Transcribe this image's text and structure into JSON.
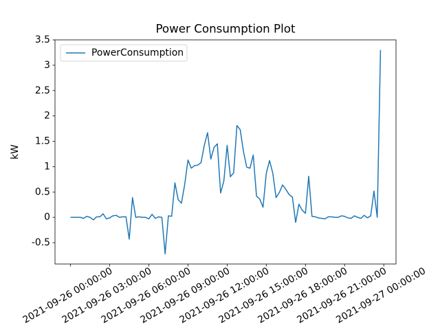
{
  "chart_data": {
    "type": "line",
    "title": "Power Consumption Plot",
    "y_label": "kW",
    "x": [
      "2021-09-26 00:00:00",
      "2021-09-26 00:15:00",
      "2021-09-26 00:30:00",
      "2021-09-26 00:45:00",
      "2021-09-26 01:00:00",
      "2021-09-26 01:15:00",
      "2021-09-26 01:30:00",
      "2021-09-26 01:45:00",
      "2021-09-26 02:00:00",
      "2021-09-26 02:15:00",
      "2021-09-26 02:30:00",
      "2021-09-26 02:45:00",
      "2021-09-26 03:00:00",
      "2021-09-26 03:15:00",
      "2021-09-26 03:30:00",
      "2021-09-26 03:45:00",
      "2021-09-26 04:00:00",
      "2021-09-26 04:15:00",
      "2021-09-26 04:30:00",
      "2021-09-26 04:45:00",
      "2021-09-26 05:00:00",
      "2021-09-26 05:15:00",
      "2021-09-26 05:30:00",
      "2021-09-26 05:45:00",
      "2021-09-26 06:00:00",
      "2021-09-26 06:15:00",
      "2021-09-26 06:30:00",
      "2021-09-26 06:45:00",
      "2021-09-26 07:00:00",
      "2021-09-26 07:15:00",
      "2021-09-26 07:30:00",
      "2021-09-26 07:45:00",
      "2021-09-26 08:00:00",
      "2021-09-26 08:15:00",
      "2021-09-26 08:30:00",
      "2021-09-26 08:45:00",
      "2021-09-26 09:00:00",
      "2021-09-26 09:15:00",
      "2021-09-26 09:30:00",
      "2021-09-26 09:45:00",
      "2021-09-26 10:00:00",
      "2021-09-26 10:15:00",
      "2021-09-26 10:30:00",
      "2021-09-26 10:45:00",
      "2021-09-26 11:00:00",
      "2021-09-26 11:15:00",
      "2021-09-26 11:30:00",
      "2021-09-26 11:45:00",
      "2021-09-26 12:00:00",
      "2021-09-26 12:15:00",
      "2021-09-26 12:30:00",
      "2021-09-26 12:45:00",
      "2021-09-26 13:00:00",
      "2021-09-26 13:15:00",
      "2021-09-26 13:30:00",
      "2021-09-26 13:45:00",
      "2021-09-26 14:00:00",
      "2021-09-26 14:15:00",
      "2021-09-26 14:30:00",
      "2021-09-26 14:45:00",
      "2021-09-26 15:00:00",
      "2021-09-26 15:15:00",
      "2021-09-26 15:30:00",
      "2021-09-26 15:45:00",
      "2021-09-26 16:00:00",
      "2021-09-26 16:15:00",
      "2021-09-26 16:30:00",
      "2021-09-26 16:45:00",
      "2021-09-26 17:00:00",
      "2021-09-26 17:15:00",
      "2021-09-26 17:30:00",
      "2021-09-26 17:45:00",
      "2021-09-26 18:00:00",
      "2021-09-26 18:15:00",
      "2021-09-26 18:30:00",
      "2021-09-26 18:45:00",
      "2021-09-26 19:00:00",
      "2021-09-26 19:15:00",
      "2021-09-26 19:30:00",
      "2021-09-26 19:45:00",
      "2021-09-26 20:00:00",
      "2021-09-26 20:15:00",
      "2021-09-26 20:30:00",
      "2021-09-26 20:45:00",
      "2021-09-26 21:00:00",
      "2021-09-26 21:15:00",
      "2021-09-26 21:30:00",
      "2021-09-26 21:45:00",
      "2021-09-26 22:00:00",
      "2021-09-26 22:15:00",
      "2021-09-26 22:30:00",
      "2021-09-26 22:45:00",
      "2021-09-26 23:00:00",
      "2021-09-26 23:15:00",
      "2021-09-26 23:30:00",
      "2021-09-26 23:45:00"
    ],
    "series": [
      {
        "name": "PowerConsumption",
        "color": "#1f77b4",
        "values": [
          0.0,
          0.0,
          0.0,
          0.0,
          -0.02,
          0.02,
          0.0,
          -0.05,
          0.01,
          0.01,
          0.07,
          -0.03,
          -0.01,
          0.03,
          0.04,
          0.0,
          0.01,
          0.01,
          -0.43,
          0.39,
          0.0,
          0.01,
          0.0,
          0.0,
          -0.03,
          0.06,
          -0.02,
          0.01,
          0.0,
          -0.72,
          0.03,
          0.02,
          0.68,
          0.35,
          0.28,
          0.65,
          1.13,
          0.97,
          1.02,
          1.03,
          1.08,
          1.42,
          1.67,
          1.15,
          1.38,
          1.45,
          0.48,
          0.72,
          1.42,
          0.8,
          0.88,
          1.81,
          1.73,
          1.3,
          0.99,
          0.97,
          1.23,
          0.42,
          0.36,
          0.2,
          0.87,
          1.12,
          0.87,
          0.39,
          0.49,
          0.64,
          0.55,
          0.45,
          0.4,
          -0.1,
          0.26,
          0.14,
          0.08,
          0.81,
          0.02,
          0.01,
          -0.01,
          -0.02,
          -0.03,
          0.01,
          0.01,
          0.0,
          0.0,
          0.03,
          0.02,
          -0.01,
          -0.02,
          0.03,
          0.0,
          -0.02,
          0.04,
          -0.01,
          0.03,
          0.52,
          0.0,
          3.3
        ]
      }
    ],
    "xlim": [
      "2021-09-25 22:48:45",
      "2021-09-27 00:56:15"
    ],
    "xticks": [
      "2021-09-26 00:00:00",
      "2021-09-26 03:00:00",
      "2021-09-26 06:00:00",
      "2021-09-26 09:00:00",
      "2021-09-26 12:00:00",
      "2021-09-26 15:00:00",
      "2021-09-26 18:00:00",
      "2021-09-26 21:00:00",
      "2021-09-27 00:00:00"
    ],
    "ylim": [
      -0.92,
      3.5
    ],
    "yticks": [
      -0.5,
      0.0,
      0.5,
      1.0,
      1.5,
      2.0,
      2.5,
      3.0,
      3.5
    ],
    "legend": "upper left"
  }
}
